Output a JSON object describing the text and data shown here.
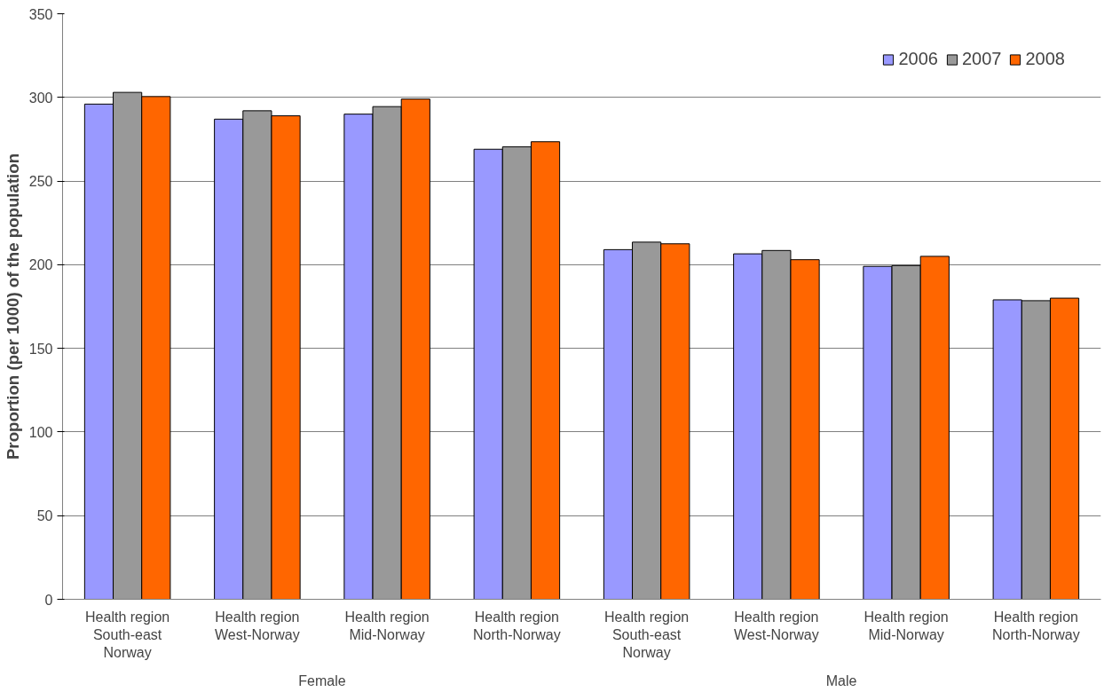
{
  "chart_data": {
    "type": "bar",
    "ylabel": "Proportion (per 1000) of the population",
    "categories": [
      "Health region South-east Norway",
      "Health region West-Norway",
      "Health region Mid-Norway",
      "Health region North-Norway",
      "Health region South-east Norway",
      "Health region West-Norway",
      "Health region Mid-Norway",
      "Health region North-Norway"
    ],
    "annotations": [
      "Female",
      "Male"
    ],
    "series": [
      {
        "name": "2006",
        "color": "#9999ff",
        "values": [
          296,
          287,
          290,
          269,
          209,
          206.5,
          199,
          179
        ]
      },
      {
        "name": "2007",
        "color": "#999999",
        "values": [
          303,
          292,
          294.5,
          270.5,
          213.5,
          208.5,
          199.5,
          178.5
        ]
      },
      {
        "name": "2008",
        "color": "#ff6600",
        "values": [
          300.5,
          289,
          299,
          273.5,
          212.5,
          203,
          205,
          180
        ]
      }
    ],
    "ylim": [
      0,
      350
    ],
    "yticks": [
      0,
      50,
      100,
      150,
      200,
      250,
      300,
      350
    ],
    "grid": "y",
    "legend": "top right"
  }
}
